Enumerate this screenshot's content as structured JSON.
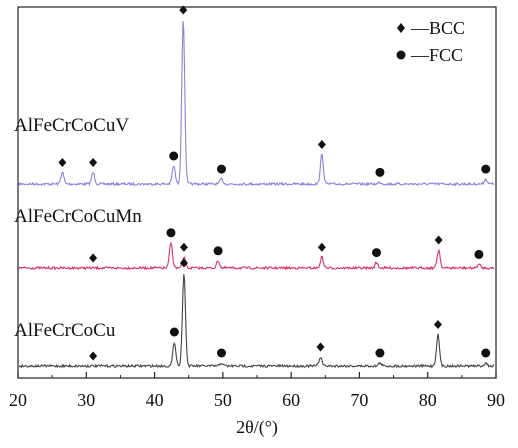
{
  "chart_data": {
    "type": "line",
    "title": "",
    "xlabel": "2θ/(°)",
    "ylabel": "",
    "xlim": [
      20,
      90
    ],
    "xticks": [
      20,
      30,
      40,
      50,
      60,
      70,
      80,
      90
    ],
    "y_ticks_shown": false,
    "grid": false,
    "legend": {
      "placement": "top-right",
      "entries": [
        {
          "marker": "diamond",
          "label": "—BCC"
        },
        {
          "marker": "circle",
          "label": "—FCC"
        }
      ]
    },
    "series": [
      {
        "name": "AlFeCrCoCuV",
        "color": "#8a82d8",
        "baseline": 0,
        "peaks": [
          {
            "x": 26.5,
            "h": 0.07,
            "phase": "BCC"
          },
          {
            "x": 31.0,
            "h": 0.07,
            "phase": "BCC"
          },
          {
            "x": 42.8,
            "h": 0.11,
            "phase": "FCC"
          },
          {
            "x": 44.2,
            "h": 1.0,
            "phase": "BCC"
          },
          {
            "x": 49.8,
            "h": 0.03,
            "phase": "FCC"
          },
          {
            "x": 64.5,
            "h": 0.18,
            "phase": "BCC"
          },
          {
            "x": 73.0,
            "h": 0.01,
            "phase": "FCC"
          },
          {
            "x": 88.5,
            "h": 0.03,
            "phase": "FCC"
          }
        ]
      },
      {
        "name": "AlFeCrCoCuMn",
        "color": "#d6336c",
        "baseline": 0,
        "peaks": [
          {
            "x": 31.0,
            "h": 0.0,
            "phase": "BCC"
          },
          {
            "x": 42.4,
            "h": 0.14,
            "phase": "FCC"
          },
          {
            "x": 44.3,
            "h": 0.06,
            "phase": "BCC"
          },
          {
            "x": 49.3,
            "h": 0.04,
            "phase": "FCC"
          },
          {
            "x": 64.5,
            "h": 0.06,
            "phase": "BCC"
          },
          {
            "x": 72.5,
            "h": 0.03,
            "phase": "FCC"
          },
          {
            "x": 81.6,
            "h": 0.1,
            "phase": "BCC"
          },
          {
            "x": 87.5,
            "h": 0.02,
            "phase": "FCC"
          }
        ]
      },
      {
        "name": "AlFeCrCoCu",
        "color": "#444444",
        "baseline": 0,
        "peaks": [
          {
            "x": 31.0,
            "h": 0.0,
            "phase": "BCC"
          },
          {
            "x": 42.9,
            "h": 0.16,
            "phase": "FCC"
          },
          {
            "x": 44.3,
            "h": 0.62,
            "phase": "BCC"
          },
          {
            "x": 49.8,
            "h": 0.02,
            "phase": "FCC"
          },
          {
            "x": 64.3,
            "h": 0.06,
            "phase": "BCC"
          },
          {
            "x": 73.0,
            "h": 0.02,
            "phase": "FCC"
          },
          {
            "x": 81.5,
            "h": 0.21,
            "phase": "BCC"
          },
          {
            "x": 88.5,
            "h": 0.02,
            "phase": "FCC"
          }
        ]
      }
    ]
  }
}
